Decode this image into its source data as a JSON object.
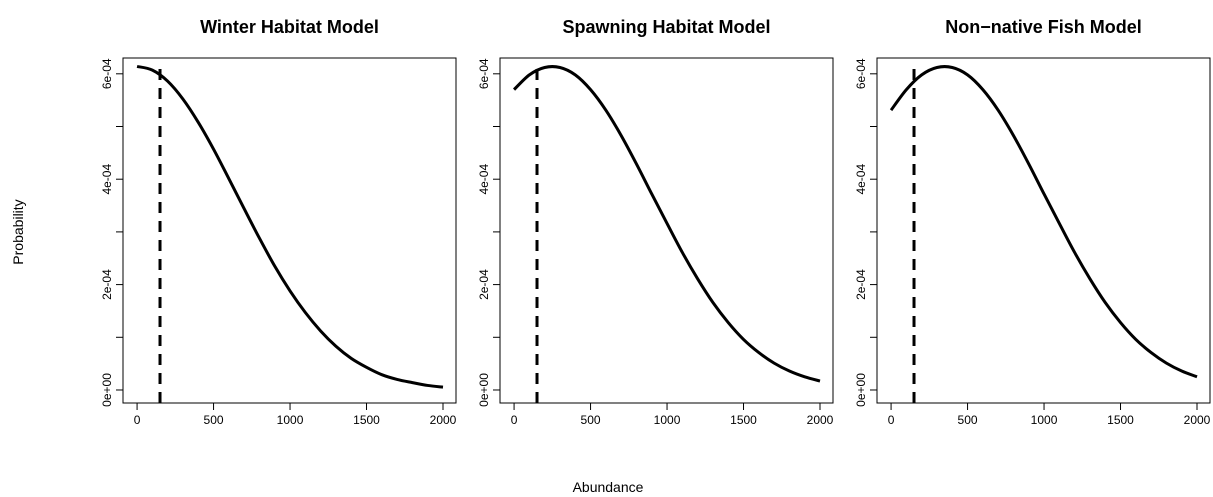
{
  "figure": {
    "xlabel": "Abundance",
    "ylabel": "Probability"
  },
  "chart_data": [
    {
      "type": "line",
      "title": "Winter Habitat Model",
      "x": [
        0,
        100,
        200,
        300,
        400,
        500,
        600,
        700,
        800,
        900,
        1000,
        1100,
        1200,
        1300,
        1400,
        1500,
        1600,
        1700,
        1800,
        1900,
        2000
      ],
      "series": [
        {
          "name": "Winter",
          "color": "#000000",
          "values": [
            0.000614,
            0.000607,
            0.000586,
            0.000552,
            0.000508,
            0.000457,
            0.000401,
            0.000344,
            0.000288,
            0.000235,
            0.000188,
            0.000147,
            0.000112,
            8.3e-05,
            6e-05,
            4.3e-05,
            2.9e-05,
            2e-05,
            1.4e-05,
            8.6e-06,
            5.4e-06
          ]
        }
      ],
      "vline_x": 150,
      "xlim": [
        -92,
        2085
      ],
      "ylim": [
        -2.47e-05,
        0.00063
      ],
      "xticks": [
        0,
        500,
        1000,
        1500,
        2000
      ],
      "yticks": [
        {
          "value": 0,
          "label": "0e+00"
        },
        {
          "value": 0.0002,
          "label": "2e-04"
        },
        {
          "value": 0.0004,
          "label": "4e-04"
        },
        {
          "value": 0.0006,
          "label": "6e-04"
        }
      ],
      "minor_yticks": [
        0.0001,
        0.0003,
        0.0005
      ]
    },
    {
      "type": "line",
      "title": "Spawning Habitat Model",
      "x": [
        0,
        100,
        200,
        300,
        400,
        500,
        600,
        700,
        800,
        900,
        1000,
        1100,
        1200,
        1300,
        1400,
        1500,
        1600,
        1700,
        1800,
        1900,
        2000
      ],
      "series": [
        {
          "name": "Spawning",
          "color": "#000000",
          "values": [
            0.00057,
            0.000598,
            0.000612,
            0.000612,
            0.000598,
            0.00057,
            0.000531,
            0.000483,
            0.000429,
            0.000372,
            0.000316,
            0.000261,
            0.000211,
            0.000166,
            0.000128,
            9.6e-05,
            7.1e-05,
            5.1e-05,
            3.6e-05,
            2.5e-05,
            1.7e-05
          ]
        }
      ],
      "vline_x": 150,
      "xlim": [
        -92,
        2085
      ],
      "ylim": [
        -2.47e-05,
        0.00063
      ],
      "xticks": [
        0,
        500,
        1000,
        1500,
        2000
      ],
      "yticks": [
        {
          "value": 0,
          "label": "0e+00"
        },
        {
          "value": 0.0002,
          "label": "2e-04"
        },
        {
          "value": 0.0004,
          "label": "4e-04"
        },
        {
          "value": 0.0006,
          "label": "6e-04"
        }
      ],
      "minor_yticks": [
        0.0001,
        0.0003,
        0.0005
      ]
    },
    {
      "type": "line",
      "title": "Non−native Fish Model",
      "x": [
        0,
        100,
        200,
        300,
        400,
        500,
        600,
        700,
        800,
        900,
        1000,
        1100,
        1200,
        1300,
        1400,
        1500,
        1600,
        1700,
        1800,
        1900,
        2000
      ],
      "series": [
        {
          "name": "Non-native",
          "color": "#000000",
          "values": [
            0.000531,
            0.00057,
            0.000598,
            0.000612,
            0.000612,
            0.000598,
            0.00057,
            0.000531,
            0.000483,
            0.000429,
            0.000372,
            0.000316,
            0.000261,
            0.000211,
            0.000166,
            0.000128,
            9.6e-05,
            7.1e-05,
            5.1e-05,
            3.6e-05,
            2.5e-05
          ]
        }
      ],
      "vline_x": 150,
      "xlim": [
        -92,
        2085
      ],
      "ylim": [
        -2.47e-05,
        0.00063
      ],
      "xticks": [
        0,
        500,
        1000,
        1500,
        2000
      ],
      "yticks": [
        {
          "value": 0,
          "label": "0e+00"
        },
        {
          "value": 0.0002,
          "label": "2e-04"
        },
        {
          "value": 0.0004,
          "label": "4e-04"
        },
        {
          "value": 0.0006,
          "label": "6e-04"
        }
      ],
      "minor_yticks": [
        0.0001,
        0.0003,
        0.0005
      ]
    }
  ]
}
